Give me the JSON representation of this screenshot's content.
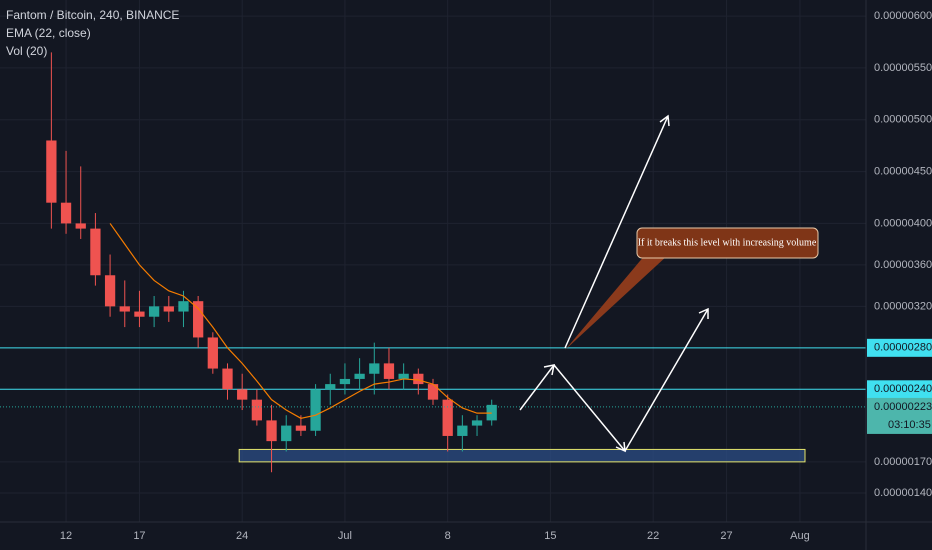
{
  "chart_data": {
    "type": "candlestick",
    "title": "Fantom / Bitcoin, 240, BINANCE",
    "indicators": [
      "EMA (22, close)",
      "Vol (20)"
    ],
    "categories": [
      null,
      null,
      null,
      null,
      "12",
      null,
      null,
      null,
      null,
      "17",
      null,
      null,
      null,
      null,
      null,
      null,
      "24",
      null,
      null,
      null,
      null,
      null,
      null,
      "Jul",
      null,
      null,
      null,
      null,
      null,
      null,
      "8",
      null,
      null,
      null,
      null,
      null,
      null,
      "15",
      null,
      null,
      null,
      null,
      null,
      null,
      "22",
      null,
      null,
      null,
      null,
      "27",
      null,
      null,
      null,
      null,
      "Aug",
      null,
      null,
      null,
      null
    ],
    "open": [
      null,
      null,
      null,
      4.8e-06,
      4.2e-06,
      4e-06,
      3.95e-06,
      3.5e-06,
      3.2e-06,
      3.15e-06,
      3.1e-06,
      3.2e-06,
      3.15e-06,
      3.25e-06,
      2.9e-06,
      2.6e-06,
      2.4e-06,
      2.3e-06,
      2.1e-06,
      1.9e-06,
      2.05e-06,
      2e-06,
      2.4e-06,
      2.45e-06,
      2.5e-06,
      2.55e-06,
      2.65e-06,
      2.5e-06,
      2.55e-06,
      2.45e-06,
      2.3e-06,
      1.95e-06,
      2.05e-06,
      2.1e-06,
      null,
      null,
      null,
      null,
      null,
      null,
      null,
      null,
      null,
      null,
      null,
      null,
      null,
      null,
      null,
      null,
      null,
      null,
      null,
      null,
      null,
      null,
      null,
      null,
      null
    ],
    "high": [
      null,
      null,
      null,
      5.65e-06,
      4.7e-06,
      4.55e-06,
      4.1e-06,
      3.7e-06,
      3.45e-06,
      3.35e-06,
      3.3e-06,
      3.3e-06,
      3.35e-06,
      3.3e-06,
      2.95e-06,
      2.65e-06,
      2.55e-06,
      2.4e-06,
      2.25e-06,
      2.15e-06,
      2.15e-06,
      2.45e-06,
      2.55e-06,
      2.65e-06,
      2.7e-06,
      2.85e-06,
      2.8e-06,
      2.65e-06,
      2.6e-06,
      2.5e-06,
      2.35e-06,
      2.15e-06,
      2.15e-06,
      2.3e-06,
      null,
      null,
      null,
      null,
      null,
      null,
      null,
      null,
      null,
      null,
      null,
      null,
      null,
      null,
      null,
      null,
      null,
      null,
      null,
      null,
      null,
      null,
      null,
      null,
      null
    ],
    "low": [
      null,
      null,
      null,
      3.95e-06,
      3.9e-06,
      3.85e-06,
      3.4e-06,
      3.1e-06,
      3e-06,
      3e-06,
      3e-06,
      3.05e-06,
      3e-06,
      2.8e-06,
      2.55e-06,
      2.3e-06,
      2.2e-06,
      2.05e-06,
      1.6e-06,
      1.8e-06,
      1.95e-06,
      1.95e-06,
      2.25e-06,
      2.35e-06,
      2.4e-06,
      2.35e-06,
      2.4e-06,
      2.4e-06,
      2.35e-06,
      2.25e-06,
      1.8e-06,
      1.8e-06,
      1.95e-06,
      2.05e-06,
      null,
      null,
      null,
      null,
      null,
      null,
      null,
      null,
      null,
      null,
      null,
      null,
      null,
      null,
      null,
      null,
      null,
      null,
      null,
      null,
      null,
      null,
      null,
      null,
      null
    ],
    "close": [
      null,
      null,
      null,
      4.2e-06,
      4e-06,
      3.95e-06,
      3.5e-06,
      3.2e-06,
      3.15e-06,
      3.1e-06,
      3.2e-06,
      3.15e-06,
      3.25e-06,
      2.9e-06,
      2.6e-06,
      2.4e-06,
      2.3e-06,
      2.1e-06,
      1.9e-06,
      2.05e-06,
      2e-06,
      2.4e-06,
      2.45e-06,
      2.5e-06,
      2.55e-06,
      2.65e-06,
      2.5e-06,
      2.55e-06,
      2.45e-06,
      2.3e-06,
      1.95e-06,
      2.05e-06,
      2.1e-06,
      2.25e-06,
      null,
      null,
      null,
      null,
      null,
      null,
      null,
      null,
      null,
      null,
      null,
      null,
      null,
      null,
      null,
      null,
      null,
      null,
      null,
      null,
      null,
      null,
      null,
      null,
      null
    ],
    "up_color": "#26a69a",
    "down_color": "#ef5350",
    "ema": {
      "color": "#f57c00",
      "values": [
        null,
        null,
        null,
        null,
        null,
        null,
        null,
        4e-06,
        3.8e-06,
        3.6e-06,
        3.45e-06,
        3.35e-06,
        3.3e-06,
        3.18e-06,
        3e-06,
        2.8e-06,
        2.65e-06,
        2.48e-06,
        2.3e-06,
        2.2e-06,
        2.12e-06,
        2.15e-06,
        2.22e-06,
        2.3e-06,
        2.38e-06,
        2.45e-06,
        2.47e-06,
        2.5e-06,
        2.49e-06,
        2.45e-06,
        2.32e-06,
        2.22e-06,
        2.17e-06,
        2.17e-06,
        null,
        null,
        null,
        null,
        null,
        null,
        null,
        null,
        null,
        null,
        null,
        null,
        null,
        null,
        null,
        null,
        null,
        null,
        null,
        null,
        null,
        null,
        null,
        null,
        null
      ]
    },
    "ylim": [
      1.12e-06,
      6.155e-06
    ],
    "yticks": [
      {
        "value": 6e-06,
        "label": "0.00000600"
      },
      {
        "value": 5.5e-06,
        "label": "0.00000550"
      },
      {
        "value": 5e-06,
        "label": "0.00000500"
      },
      {
        "value": 4.5e-06,
        "label": "0.00000450"
      },
      {
        "value": 4e-06,
        "label": "0.00000400"
      },
      {
        "value": 3.6e-06,
        "label": "0.00000360"
      },
      {
        "value": 3.2e-06,
        "label": "0.00000320"
      },
      {
        "value": 1.7e-06,
        "label": "0.00000170"
      },
      {
        "value": 1.4e-06,
        "label": "0.00000140"
      }
    ],
    "levels": [
      {
        "value": 2.8e-06,
        "label": "0.00000280"
      },
      {
        "value": 2.4e-06,
        "label": "0.00000240"
      }
    ],
    "last_price": {
      "value": 2.23e-06,
      "label": "0.00000223"
    },
    "countdown": "03:10:35",
    "zone": [
      1.7e-06,
      1.82e-06
    ],
    "annotation": "If it breaks this level with increasing volume",
    "grid": true
  }
}
